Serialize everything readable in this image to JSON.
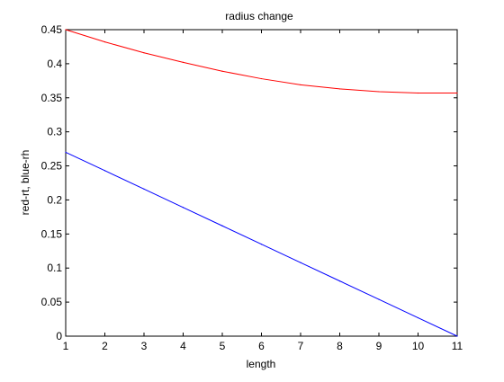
{
  "chart_data": {
    "type": "line",
    "title": "radius change",
    "xlabel": "length",
    "ylabel": "red-rt, blue-rh",
    "xlim": [
      1,
      11
    ],
    "ylim": [
      0,
      0.45
    ],
    "xticks": [
      1,
      2,
      3,
      4,
      5,
      6,
      7,
      8,
      9,
      10,
      11
    ],
    "yticks": [
      0,
      0.05,
      0.1,
      0.15,
      0.2,
      0.25,
      0.3,
      0.35,
      0.4,
      0.45
    ],
    "grid": false,
    "series": [
      {
        "color": "#ff0000",
        "x": [
          1,
          2,
          3,
          4,
          5,
          6,
          7,
          8,
          9,
          10,
          11
        ],
        "values": [
          0.45,
          0.432,
          0.416,
          0.402,
          0.389,
          0.378,
          0.369,
          0.363,
          0.359,
          0.357,
          0.357
        ]
      },
      {
        "color": "#0000ff",
        "x": [
          1,
          2,
          3,
          4,
          5,
          6,
          7,
          8,
          9,
          10,
          11
        ],
        "values": [
          0.27,
          0.243,
          0.216,
          0.189,
          0.162,
          0.135,
          0.108,
          0.081,
          0.054,
          0.027,
          0.0
        ]
      }
    ]
  }
}
